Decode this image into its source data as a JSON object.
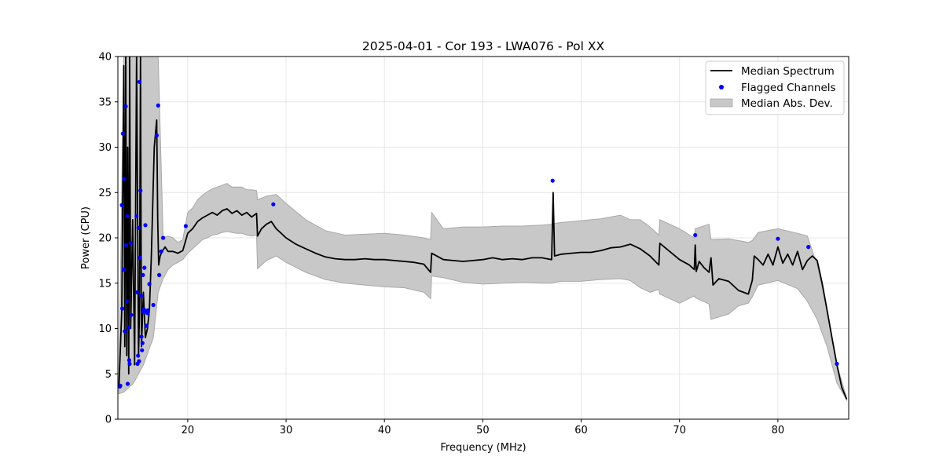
{
  "chart_data": {
    "type": "line",
    "title": "2025-04-01 - Cor 193 - LWA076 - Pol XX",
    "xlabel": "Frequency (MHz)",
    "ylabel": "Power (CPU)",
    "xlim": [
      12.9,
      87.2
    ],
    "ylim": [
      0,
      40
    ],
    "xticks": [
      20,
      30,
      40,
      50,
      60,
      70,
      80
    ],
    "yticks": [
      0,
      5,
      10,
      15,
      20,
      25,
      30,
      35,
      40
    ],
    "grid": true,
    "legend_position": "top-right",
    "legend": [
      "Median Spectrum",
      "Flagged Channels",
      "Median Abs. Dev."
    ],
    "colors": {
      "median": "#000000",
      "flagged": "#0000ff",
      "mad_fill": "#c8c8c8",
      "mad_edge": "#a8a8a8"
    },
    "series": [
      {
        "name": "Median Spectrum",
        "x": [
          13.0,
          13.3,
          13.5,
          13.6,
          13.7,
          13.8,
          13.9,
          14.0,
          14.1,
          14.2,
          14.4,
          14.6,
          14.8,
          15.0,
          15.1,
          15.2,
          15.3,
          15.5,
          15.7,
          15.9,
          16.1,
          16.3,
          16.6,
          16.85,
          16.95,
          17.05,
          17.2,
          17.4,
          17.7,
          18.0,
          18.5,
          19.0,
          19.5,
          20.0,
          20.5,
          21.0,
          21.5,
          22.0,
          22.5,
          23.0,
          23.5,
          24.0,
          24.5,
          25.0,
          25.5,
          26.0,
          26.5,
          27.0,
          27.1,
          27.5,
          28.0,
          28.5,
          29.0,
          29.5,
          30.0,
          31.0,
          32.0,
          33.0,
          34.0,
          35.0,
          36.0,
          37.0,
          38.0,
          39.0,
          40.0,
          41.0,
          42.0,
          43.0,
          44.0,
          44.7,
          44.8,
          45.5,
          46.0,
          47.0,
          48.0,
          49.0,
          50.0,
          51.0,
          52.0,
          53.0,
          54.0,
          55.0,
          56.0,
          57.0,
          57.15,
          57.3,
          58.0,
          59.0,
          60.0,
          61.0,
          62.0,
          63.0,
          64.0,
          65.0,
          66.0,
          67.0,
          67.9,
          68.0,
          69.0,
          70.0,
          71.0,
          71.5,
          71.6,
          71.7,
          72.0,
          72.5,
          73.0,
          73.2,
          73.4,
          74.0,
          75.0,
          76.0,
          77.0,
          77.4,
          77.6,
          78.0,
          78.5,
          79.0,
          79.5,
          80.0,
          80.5,
          81.0,
          81.5,
          82.0,
          82.5,
          83.0,
          83.5,
          84.0,
          84.5,
          85.0,
          85.5,
          86.0,
          86.5,
          87.0
        ],
        "values": [
          3.5,
          12,
          39,
          8,
          40,
          7,
          30,
          5,
          40,
          10,
          22,
          6,
          40,
          7,
          12,
          40,
          8,
          14,
          9,
          10,
          12,
          18,
          30,
          33,
          22,
          17,
          18,
          18.5,
          19,
          18.5,
          18.5,
          18.3,
          18.6,
          20.5,
          21.0,
          21.8,
          22.2,
          22.5,
          22.8,
          22.5,
          23.0,
          23.2,
          22.7,
          23.0,
          22.5,
          22.8,
          22.3,
          22.7,
          20.2,
          21.0,
          21.5,
          21.8,
          21.0,
          20.5,
          20.0,
          19.3,
          18.8,
          18.3,
          17.9,
          17.7,
          17.6,
          17.6,
          17.7,
          17.6,
          17.6,
          17.5,
          17.4,
          17.3,
          17.1,
          16.2,
          18.3,
          17.9,
          17.6,
          17.5,
          17.4,
          17.5,
          17.6,
          17.8,
          17.6,
          17.7,
          17.6,
          17.8,
          17.8,
          17.6,
          25.0,
          18.0,
          18.2,
          18.3,
          18.4,
          18.4,
          18.6,
          18.9,
          19.0,
          19.3,
          18.8,
          18.0,
          17.0,
          19.4,
          18.5,
          17.6,
          17.0,
          16.5,
          19.2,
          16.3,
          17.4,
          16.7,
          16.2,
          17.8,
          14.8,
          15.5,
          15.2,
          14.2,
          13.8,
          15.3,
          18.0,
          17.6,
          17.0,
          18.2,
          17.0,
          19.0,
          17.2,
          18.2,
          17.0,
          18.5,
          16.5,
          17.5,
          18.0,
          17.5,
          15.0,
          12.0,
          9.0,
          6.0,
          3.5,
          2.2
        ]
      },
      {
        "name": "Median Abs. Dev.",
        "x": [
          13.0,
          13.5,
          14.0,
          14.5,
          15.0,
          15.5,
          16.0,
          16.5,
          17.0,
          17.5,
          18.0,
          18.5,
          19.0,
          19.5,
          20.0,
          20.5,
          21.0,
          21.5,
          22.0,
          22.5,
          23.0,
          23.5,
          24.0,
          24.5,
          25.0,
          25.5,
          26.0,
          26.5,
          27.0,
          27.1,
          28.0,
          29.0,
          30.0,
          32.0,
          34.0,
          36.0,
          38.0,
          40.0,
          42.0,
          44.0,
          44.7,
          44.8,
          46.0,
          48.0,
          50.0,
          52.0,
          54.0,
          56.0,
          57.0,
          57.3,
          58.0,
          60.0,
          62.0,
          64.0,
          65.0,
          66.0,
          67.0,
          67.9,
          68.0,
          70.0,
          71.5,
          71.6,
          73.0,
          73.2,
          75.0,
          76.0,
          77.0,
          77.4,
          78.0,
          80.0,
          82.0,
          83.0,
          84.0,
          85.0,
          86.0,
          87.0
        ],
        "lower": [
          2.8,
          3,
          3.5,
          4,
          5,
          6,
          7.5,
          9,
          14,
          15.5,
          16.5,
          17,
          17.3,
          17.6,
          18.3,
          18.8,
          19.3,
          19.8,
          20.0,
          20.3,
          20.4,
          20.6,
          20.7,
          20.6,
          20.5,
          20.5,
          20.3,
          20.2,
          20.3,
          16.6,
          17.5,
          18.0,
          17.3,
          16.2,
          15.4,
          15.0,
          14.8,
          14.6,
          14.5,
          14.0,
          13.3,
          15.8,
          15.6,
          15.1,
          14.9,
          15.0,
          15.1,
          15.0,
          15.0,
          15.1,
          15.2,
          15.2,
          15.4,
          15.5,
          15.3,
          14.5,
          14.0,
          14.3,
          13.8,
          12.8,
          13.6,
          13.4,
          12.7,
          11.0,
          11.6,
          12.5,
          12.8,
          13.5,
          14.8,
          15.3,
          14.4,
          13.0,
          11.0,
          8.0,
          4.0,
          2.1
        ],
        "upper": [
          4.5,
          40,
          40,
          40,
          40,
          40,
          40,
          40,
          40,
          20,
          20.2,
          20,
          19.5,
          19.8,
          22.8,
          23.3,
          24.2,
          24.7,
          25.1,
          25.4,
          25.6,
          25.8,
          26.0,
          25.6,
          25.6,
          25.6,
          25.3,
          25.3,
          25.2,
          24.2,
          24.6,
          24.8,
          23.8,
          22.0,
          20.8,
          20.3,
          20.4,
          20.5,
          20.3,
          20.0,
          19.8,
          22.8,
          21.0,
          21.2,
          21.2,
          21.3,
          21.3,
          21.4,
          21.5,
          21.6,
          21.7,
          21.9,
          22.1,
          22.5,
          22.0,
          22.0,
          21.2,
          20.3,
          22.0,
          21.0,
          20.0,
          21.0,
          21.5,
          19.8,
          19.9,
          19.7,
          19.5,
          19.7,
          20.6,
          21.0,
          20.5,
          20.2,
          17.0,
          12.0,
          6.0,
          2.3
        ]
      }
    ],
    "flagged_channels": {
      "x": [
        13.1,
        13.15,
        13.3,
        13.35,
        13.4,
        13.5,
        13.55,
        13.6,
        13.7,
        13.75,
        13.8,
        13.85,
        13.9,
        14.0,
        14.05,
        14.1,
        14.2,
        14.25,
        14.8,
        14.85,
        14.9,
        14.95,
        15.0,
        15.05,
        15.1,
        15.15,
        15.2,
        15.25,
        15.3,
        15.35,
        15.4,
        15.45,
        15.5,
        15.55,
        15.6,
        15.7,
        15.75,
        15.8,
        15.9,
        15.95,
        16.1,
        16.5,
        16.85,
        17.0,
        17.1,
        17.3,
        17.5,
        19.8,
        28.7,
        57.1,
        71.6,
        80.0,
        83.1,
        86.0
      ],
      "y": [
        3.6,
        3.7,
        23.6,
        12.2,
        31.5,
        16.5,
        26.5,
        9.7,
        34.5,
        19.2,
        13.0,
        22.4,
        3.9,
        10.1,
        6.5,
        6.1,
        19.4,
        11.5,
        22.4,
        14.0,
        6.1,
        7.0,
        21.1,
        6.4,
        37.2,
        17.8,
        25.2,
        13.6,
        9.1,
        7.6,
        8.4,
        15.9,
        11.8,
        12.1,
        16.7,
        21.4,
        11.9,
        10.3,
        11.7,
        12.0,
        14.9,
        12.6,
        31.3,
        34.6,
        15.9,
        18.5,
        20.0,
        21.3,
        23.7,
        26.3,
        20.3,
        19.9,
        19.0,
        6.1
      ]
    }
  }
}
